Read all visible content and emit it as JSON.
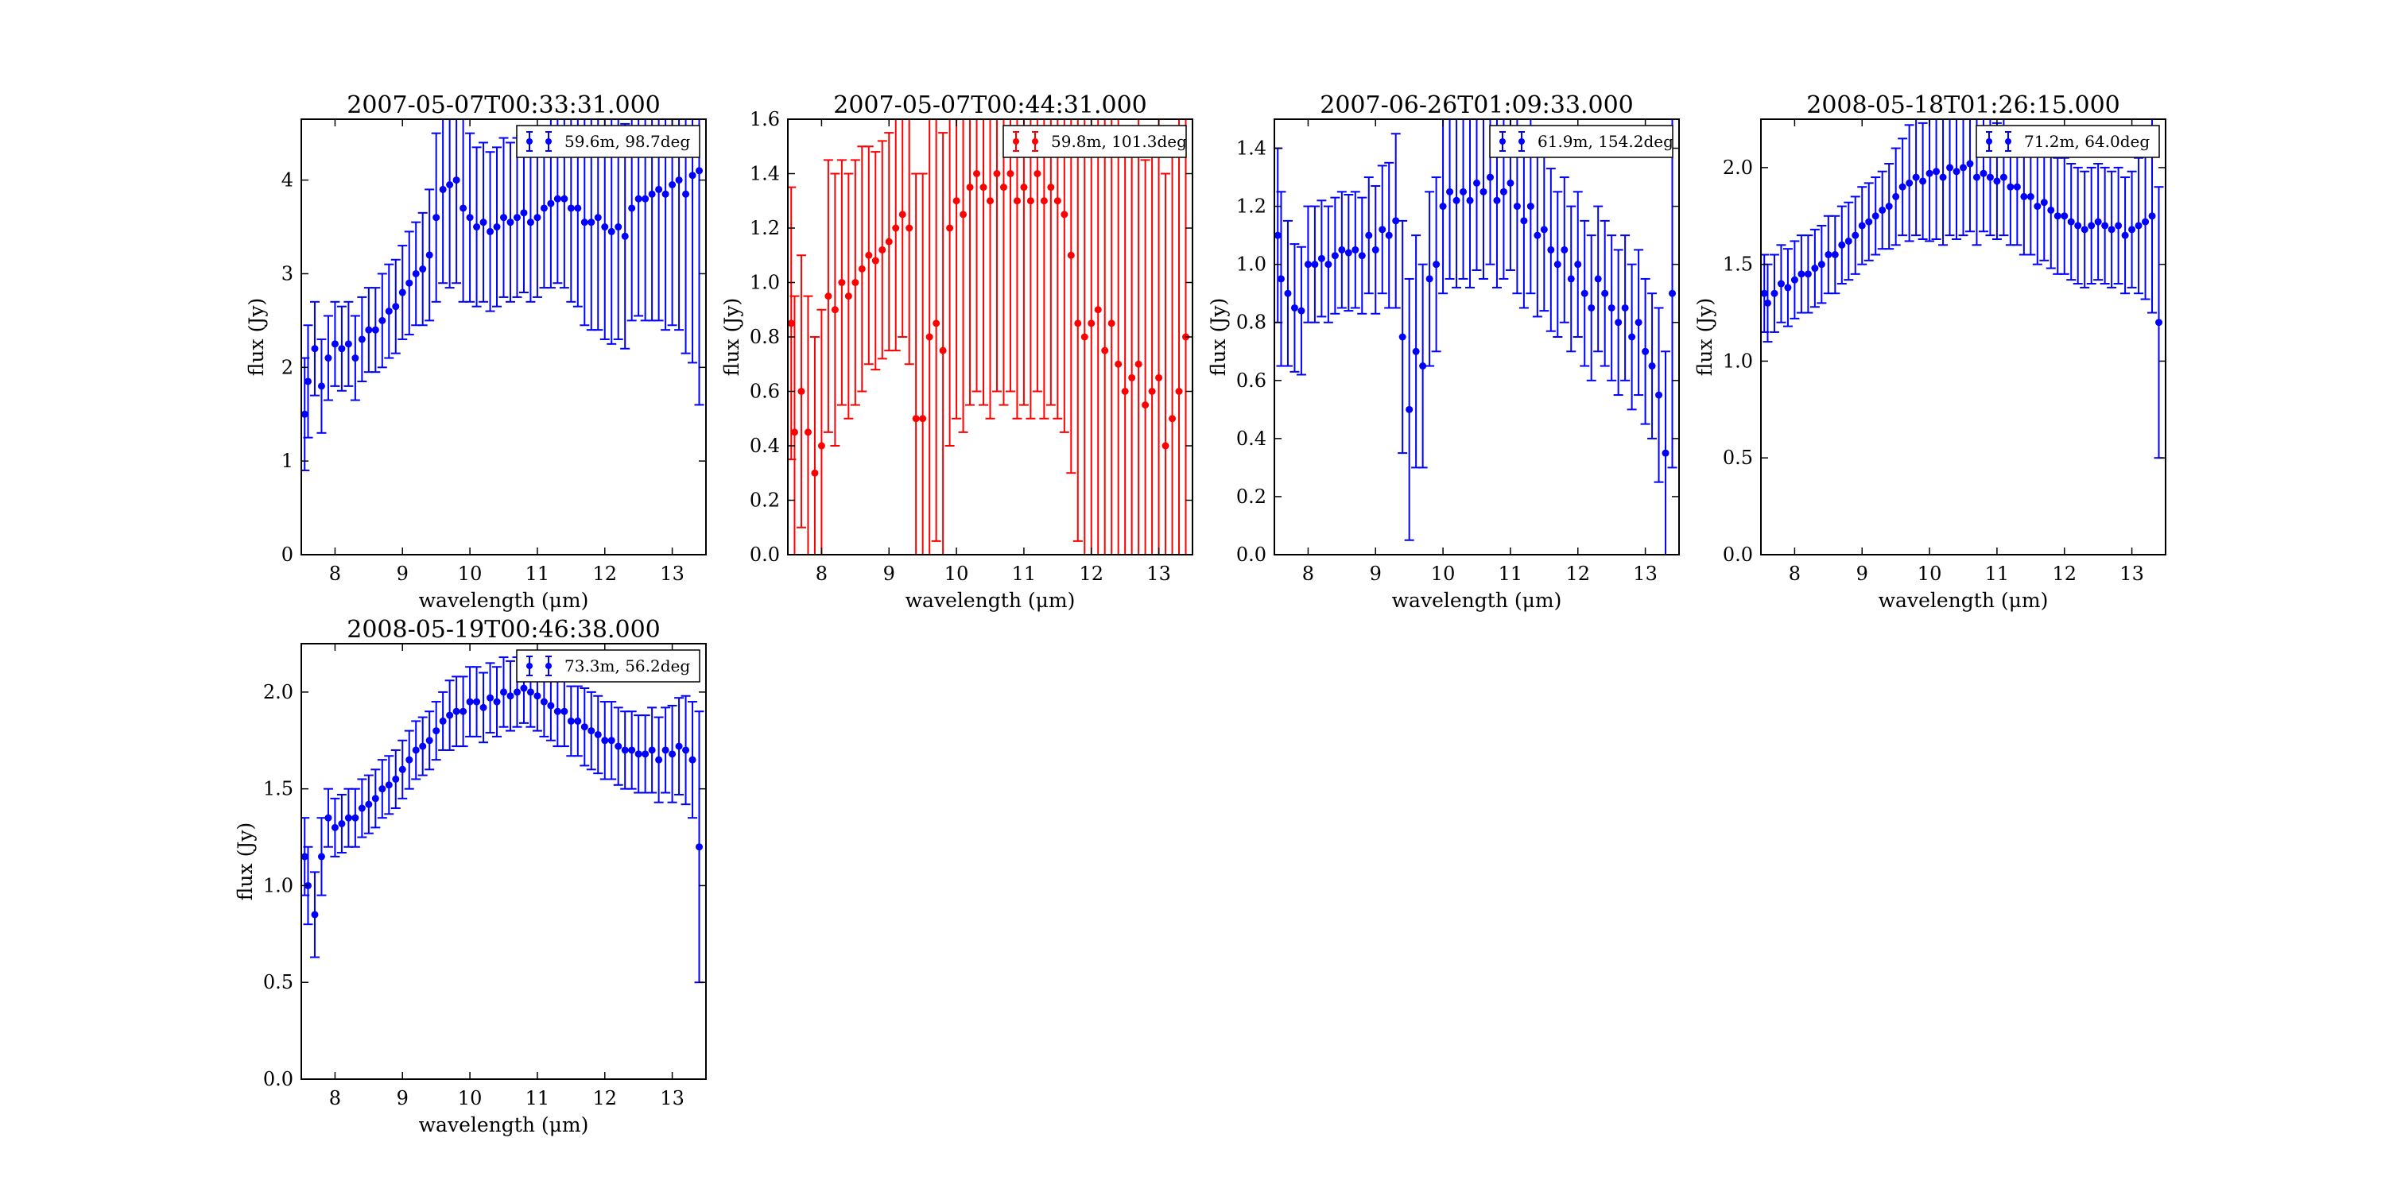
{
  "figure": {
    "xlabel": "wavelength (μm)",
    "ylabel": "flux (Jy)"
  },
  "chart_data": [
    {
      "type": "scatter",
      "title": "2007-05-07T00:33:31.000",
      "xlabel": "wavelength (μm)",
      "ylabel": "flux (Jy)",
      "xlim": [
        7.5,
        13.5
      ],
      "ylim": [
        0,
        4.65
      ],
      "xticks": [
        8,
        9,
        10,
        11,
        12,
        13
      ],
      "yticks": [
        0,
        1,
        2,
        3,
        4
      ],
      "color": "#0000ff",
      "legend": "59.6m, 98.7deg",
      "legend_position": "upper right",
      "series": [
        {
          "name": "59.6m, 98.7deg",
          "x": [
            7.55,
            7.6,
            7.7,
            7.8,
            7.9,
            8.0,
            8.1,
            8.2,
            8.3,
            8.4,
            8.5,
            8.6,
            8.7,
            8.8,
            8.9,
            9.0,
            9.1,
            9.2,
            9.3,
            9.4,
            9.5,
            9.6,
            9.7,
            9.8,
            9.9,
            10.0,
            10.1,
            10.2,
            10.3,
            10.4,
            10.5,
            10.6,
            10.7,
            10.8,
            10.9,
            11.0,
            11.1,
            11.2,
            11.3,
            11.4,
            11.5,
            11.6,
            11.7,
            11.8,
            11.9,
            12.0,
            12.1,
            12.2,
            12.3,
            12.4,
            12.5,
            12.6,
            12.7,
            12.8,
            12.9,
            13.0,
            13.1,
            13.2,
            13.3,
            13.4
          ],
          "y": [
            1.5,
            1.85,
            2.2,
            1.8,
            2.1,
            2.25,
            2.2,
            2.25,
            2.1,
            2.3,
            2.4,
            2.4,
            2.5,
            2.6,
            2.65,
            2.8,
            2.9,
            3.0,
            3.05,
            3.2,
            3.6,
            3.9,
            3.95,
            4.0,
            3.7,
            3.6,
            3.5,
            3.55,
            3.45,
            3.5,
            3.6,
            3.55,
            3.6,
            3.65,
            3.55,
            3.6,
            3.7,
            3.75,
            3.8,
            3.8,
            3.7,
            3.7,
            3.55,
            3.55,
            3.6,
            3.5,
            3.45,
            3.5,
            3.4,
            3.7,
            3.8,
            3.8,
            3.85,
            3.9,
            3.85,
            3.95,
            4.0,
            3.85,
            4.05,
            4.1
          ],
          "yerr": [
            0.6,
            0.6,
            0.5,
            0.5,
            0.45,
            0.45,
            0.45,
            0.45,
            0.45,
            0.45,
            0.45,
            0.45,
            0.5,
            0.5,
            0.5,
            0.5,
            0.55,
            0.55,
            0.6,
            0.7,
            0.9,
            1.0,
            1.1,
            1.1,
            1.0,
            0.9,
            0.85,
            0.85,
            0.85,
            0.85,
            0.85,
            0.85,
            0.85,
            0.85,
            0.85,
            0.85,
            0.85,
            0.9,
            0.9,
            0.95,
            1.0,
            1.05,
            1.1,
            1.15,
            1.2,
            1.2,
            1.2,
            1.2,
            1.2,
            1.2,
            1.25,
            1.3,
            1.35,
            1.4,
            1.45,
            1.5,
            1.6,
            1.7,
            2.0,
            2.5
          ]
        }
      ]
    },
    {
      "type": "scatter",
      "title": "2007-05-07T00:44:31.000",
      "xlabel": "wavelength (μm)",
      "ylabel": "flux (Jy)",
      "xlim": [
        7.5,
        13.5
      ],
      "ylim": [
        0,
        1.6
      ],
      "xticks": [
        8,
        9,
        10,
        11,
        12,
        13
      ],
      "yticks": [
        0.0,
        0.2,
        0.4,
        0.6,
        0.8,
        1.0,
        1.2,
        1.4,
        1.6
      ],
      "color": "#ff0000",
      "legend": "59.8m, 101.3deg",
      "legend_position": "upper right",
      "series": [
        {
          "name": "59.8m, 101.3deg",
          "x": [
            7.55,
            7.6,
            7.7,
            7.8,
            7.9,
            8.0,
            8.1,
            8.2,
            8.3,
            8.4,
            8.5,
            8.6,
            8.7,
            8.8,
            8.9,
            9.0,
            9.1,
            9.2,
            9.3,
            9.4,
            9.5,
            9.6,
            9.7,
            9.8,
            9.9,
            10.0,
            10.1,
            10.2,
            10.3,
            10.4,
            10.5,
            10.6,
            10.7,
            10.8,
            10.9,
            11.0,
            11.1,
            11.2,
            11.3,
            11.4,
            11.5,
            11.6,
            11.7,
            11.8,
            11.9,
            12.0,
            12.1,
            12.2,
            12.3,
            12.4,
            12.5,
            12.6,
            12.7,
            12.8,
            12.9,
            13.0,
            13.1,
            13.2,
            13.3,
            13.4
          ],
          "y": [
            0.85,
            0.45,
            0.6,
            0.45,
            0.3,
            0.4,
            0.95,
            0.9,
            1.0,
            0.95,
            1.0,
            1.05,
            1.1,
            1.08,
            1.12,
            1.15,
            1.2,
            1.25,
            1.2,
            0.5,
            0.5,
            0.8,
            0.85,
            0.75,
            1.2,
            1.3,
            1.25,
            1.35,
            1.4,
            1.35,
            1.3,
            1.4,
            1.35,
            1.4,
            1.3,
            1.35,
            1.3,
            1.4,
            1.3,
            1.35,
            1.3,
            1.25,
            1.1,
            0.85,
            0.8,
            0.85,
            0.9,
            0.75,
            0.85,
            0.7,
            0.6,
            0.65,
            0.7,
            0.55,
            0.6,
            0.65,
            0.4,
            0.5,
            0.6,
            0.8
          ],
          "yerr": [
            0.5,
            0.5,
            0.5,
            0.5,
            0.5,
            0.5,
            0.5,
            0.5,
            0.45,
            0.45,
            0.45,
            0.45,
            0.4,
            0.4,
            0.4,
            0.4,
            0.45,
            0.45,
            0.5,
            0.9,
            0.9,
            0.9,
            0.8,
            0.8,
            0.8,
            0.8,
            0.8,
            0.8,
            0.8,
            0.8,
            0.8,
            0.8,
            0.8,
            0.8,
            0.8,
            0.8,
            0.8,
            0.8,
            0.8,
            0.8,
            0.8,
            0.8,
            0.8,
            0.8,
            0.8,
            0.9,
            0.9,
            0.9,
            0.9,
            0.9,
            0.9,
            0.9,
            0.9,
            0.9,
            0.9,
            1.0,
            1.0,
            1.0,
            1.0,
            1.0
          ]
        }
      ]
    },
    {
      "type": "scatter",
      "title": "2007-06-26T01:09:33.000",
      "xlabel": "wavelength (μm)",
      "ylabel": "flux (Jy)",
      "xlim": [
        7.5,
        13.5
      ],
      "ylim": [
        0,
        1.5
      ],
      "xticks": [
        8,
        9,
        10,
        11,
        12,
        13
      ],
      "yticks": [
        0.0,
        0.2,
        0.4,
        0.6,
        0.8,
        1.0,
        1.2,
        1.4
      ],
      "color": "#0000ff",
      "legend": "61.9m, 154.2deg",
      "legend_position": "upper right",
      "series": [
        {
          "name": "61.9m, 154.2deg",
          "x": [
            7.55,
            7.6,
            7.7,
            7.8,
            7.9,
            8.0,
            8.1,
            8.2,
            8.3,
            8.4,
            8.5,
            8.6,
            8.7,
            8.8,
            8.9,
            9.0,
            9.1,
            9.2,
            9.3,
            9.4,
            9.5,
            9.6,
            9.7,
            9.8,
            9.9,
            10.0,
            10.1,
            10.2,
            10.3,
            10.4,
            10.5,
            10.6,
            10.7,
            10.8,
            10.9,
            11.0,
            11.1,
            11.2,
            11.3,
            11.4,
            11.5,
            11.6,
            11.7,
            11.8,
            11.9,
            12.0,
            12.1,
            12.2,
            12.3,
            12.4,
            12.5,
            12.6,
            12.7,
            12.8,
            12.9,
            13.0,
            13.1,
            13.2,
            13.3,
            13.4
          ],
          "y": [
            1.1,
            0.95,
            0.9,
            0.85,
            0.84,
            1.0,
            1.0,
            1.02,
            1.0,
            1.03,
            1.05,
            1.04,
            1.05,
            1.03,
            1.1,
            1.05,
            1.12,
            1.1,
            1.15,
            0.75,
            0.5,
            0.7,
            0.65,
            0.95,
            1.0,
            1.2,
            1.25,
            1.22,
            1.25,
            1.22,
            1.28,
            1.25,
            1.3,
            1.22,
            1.25,
            1.28,
            1.2,
            1.15,
            1.2,
            1.1,
            1.12,
            1.05,
            1.0,
            1.05,
            0.95,
            1.0,
            0.9,
            0.85,
            0.95,
            0.9,
            0.85,
            0.8,
            0.85,
            0.75,
            0.8,
            0.7,
            0.65,
            0.55,
            0.35,
            0.9
          ],
          "yerr": [
            0.3,
            0.3,
            0.25,
            0.22,
            0.22,
            0.2,
            0.2,
            0.2,
            0.2,
            0.2,
            0.2,
            0.2,
            0.2,
            0.2,
            0.2,
            0.22,
            0.22,
            0.25,
            0.3,
            0.4,
            0.45,
            0.4,
            0.35,
            0.3,
            0.3,
            0.3,
            0.3,
            0.3,
            0.3,
            0.3,
            0.3,
            0.3,
            0.3,
            0.3,
            0.3,
            0.3,
            0.3,
            0.3,
            0.3,
            0.28,
            0.28,
            0.28,
            0.25,
            0.25,
            0.25,
            0.25,
            0.25,
            0.25,
            0.25,
            0.25,
            0.25,
            0.25,
            0.25,
            0.25,
            0.25,
            0.25,
            0.25,
            0.3,
            0.35,
            0.6
          ]
        }
      ]
    },
    {
      "type": "scatter",
      "title": "2008-05-18T01:26:15.000",
      "xlabel": "wavelength (μm)",
      "ylabel": "flux (Jy)",
      "xlim": [
        7.5,
        13.5
      ],
      "ylim": [
        0,
        2.25
      ],
      "xticks": [
        8,
        9,
        10,
        11,
        12,
        13
      ],
      "yticks": [
        0.0,
        0.5,
        1.0,
        1.5,
        2.0
      ],
      "color": "#0000ff",
      "legend": "71.2m, 64.0deg",
      "legend_position": "upper right",
      "series": [
        {
          "name": "71.2m, 64.0deg",
          "x": [
            7.55,
            7.6,
            7.7,
            7.8,
            7.9,
            8.0,
            8.1,
            8.2,
            8.3,
            8.4,
            8.5,
            8.6,
            8.7,
            8.8,
            8.9,
            9.0,
            9.1,
            9.2,
            9.3,
            9.4,
            9.5,
            9.6,
            9.7,
            9.8,
            9.9,
            10.0,
            10.1,
            10.2,
            10.3,
            10.4,
            10.5,
            10.6,
            10.7,
            10.8,
            10.9,
            11.0,
            11.1,
            11.2,
            11.3,
            11.4,
            11.5,
            11.6,
            11.7,
            11.8,
            11.9,
            12.0,
            12.1,
            12.2,
            12.3,
            12.4,
            12.5,
            12.6,
            12.7,
            12.8,
            12.9,
            13.0,
            13.1,
            13.2,
            13.3,
            13.4
          ],
          "y": [
            1.35,
            1.3,
            1.35,
            1.4,
            1.38,
            1.42,
            1.45,
            1.45,
            1.48,
            1.5,
            1.55,
            1.55,
            1.6,
            1.62,
            1.65,
            1.7,
            1.72,
            1.75,
            1.78,
            1.8,
            1.85,
            1.9,
            1.92,
            1.95,
            1.93,
            1.97,
            1.98,
            1.95,
            2.0,
            1.98,
            2.0,
            2.02,
            1.95,
            1.97,
            1.95,
            1.93,
            1.95,
            1.9,
            1.9,
            1.85,
            1.85,
            1.8,
            1.82,
            1.78,
            1.75,
            1.75,
            1.72,
            1.7,
            1.68,
            1.7,
            1.72,
            1.7,
            1.68,
            1.7,
            1.65,
            1.68,
            1.7,
            1.72,
            1.75,
            1.2
          ],
          "yerr": [
            0.2,
            0.2,
            0.2,
            0.2,
            0.2,
            0.2,
            0.2,
            0.2,
            0.2,
            0.2,
            0.2,
            0.2,
            0.2,
            0.2,
            0.2,
            0.2,
            0.2,
            0.2,
            0.2,
            0.22,
            0.25,
            0.25,
            0.3,
            0.3,
            0.3,
            0.35,
            0.35,
            0.35,
            0.35,
            0.35,
            0.35,
            0.35,
            0.35,
            0.3,
            0.3,
            0.3,
            0.3,
            0.3,
            0.3,
            0.3,
            0.3,
            0.3,
            0.3,
            0.3,
            0.3,
            0.3,
            0.3,
            0.3,
            0.3,
            0.3,
            0.3,
            0.3,
            0.3,
            0.3,
            0.3,
            0.3,
            0.35,
            0.4,
            0.5,
            0.7
          ]
        }
      ]
    },
    {
      "type": "scatter",
      "title": "2008-05-19T00:46:38.000",
      "xlabel": "wavelength (μm)",
      "ylabel": "flux (Jy)",
      "xlim": [
        7.5,
        13.5
      ],
      "ylim": [
        0,
        2.25
      ],
      "xticks": [
        8,
        9,
        10,
        11,
        12,
        13
      ],
      "yticks": [
        0.0,
        0.5,
        1.0,
        1.5,
        2.0
      ],
      "color": "#0000ff",
      "legend": "73.3m, 56.2deg",
      "legend_position": "upper right",
      "series": [
        {
          "name": "73.3m, 56.2deg",
          "x": [
            7.55,
            7.6,
            7.7,
            7.8,
            7.9,
            8.0,
            8.1,
            8.2,
            8.3,
            8.4,
            8.5,
            8.6,
            8.7,
            8.8,
            8.9,
            9.0,
            9.1,
            9.2,
            9.3,
            9.4,
            9.5,
            9.6,
            9.7,
            9.8,
            9.9,
            10.0,
            10.1,
            10.2,
            10.3,
            10.4,
            10.5,
            10.6,
            10.7,
            10.8,
            10.9,
            11.0,
            11.1,
            11.2,
            11.3,
            11.4,
            11.5,
            11.6,
            11.7,
            11.8,
            11.9,
            12.0,
            12.1,
            12.2,
            12.3,
            12.4,
            12.5,
            12.6,
            12.7,
            12.8,
            12.9,
            13.0,
            13.1,
            13.2,
            13.3,
            13.4
          ],
          "y": [
            1.15,
            1.0,
            0.85,
            1.15,
            1.35,
            1.3,
            1.32,
            1.35,
            1.35,
            1.4,
            1.42,
            1.45,
            1.5,
            1.52,
            1.55,
            1.6,
            1.65,
            1.7,
            1.72,
            1.75,
            1.8,
            1.85,
            1.88,
            1.9,
            1.9,
            1.95,
            1.95,
            1.92,
            1.97,
            1.95,
            2.0,
            1.98,
            2.0,
            2.02,
            2.0,
            1.98,
            1.95,
            1.93,
            1.9,
            1.9,
            1.85,
            1.85,
            1.82,
            1.8,
            1.78,
            1.75,
            1.75,
            1.72,
            1.7,
            1.7,
            1.68,
            1.68,
            1.7,
            1.65,
            1.7,
            1.68,
            1.72,
            1.7,
            1.65,
            1.2
          ],
          "yerr": [
            0.2,
            0.2,
            0.22,
            0.2,
            0.15,
            0.15,
            0.15,
            0.15,
            0.15,
            0.15,
            0.15,
            0.15,
            0.15,
            0.15,
            0.15,
            0.15,
            0.15,
            0.15,
            0.15,
            0.15,
            0.15,
            0.15,
            0.18,
            0.18,
            0.18,
            0.18,
            0.18,
            0.18,
            0.18,
            0.18,
            0.18,
            0.18,
            0.18,
            0.18,
            0.18,
            0.18,
            0.18,
            0.18,
            0.18,
            0.18,
            0.18,
            0.18,
            0.2,
            0.2,
            0.2,
            0.2,
            0.2,
            0.2,
            0.2,
            0.2,
            0.2,
            0.2,
            0.22,
            0.22,
            0.22,
            0.25,
            0.25,
            0.28,
            0.3,
            0.7
          ]
        }
      ]
    }
  ]
}
